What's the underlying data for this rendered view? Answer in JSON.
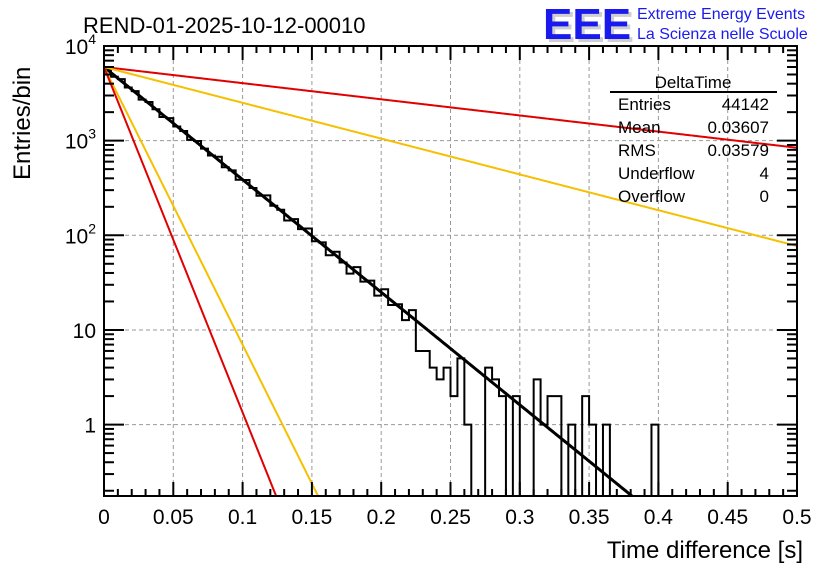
{
  "chart_data": {
    "type": "bar",
    "title": "REND-01-2025-10-12-00010",
    "xlabel": "Time difference [s]",
    "ylabel": "Entries/bin",
    "xlim": [
      0,
      0.5
    ],
    "ylim": [
      0.176,
      10000
    ],
    "yscale": "log",
    "grid": true,
    "bin_width": 0.005,
    "x_ticks": [
      "0",
      "0.05",
      "0.1",
      "0.15",
      "0.2",
      "0.25",
      "0.3",
      "0.35",
      "0.4",
      "0.45",
      "0.5"
    ],
    "y_ticks": [
      {
        "value": 1,
        "base": "1",
        "exp": ""
      },
      {
        "value": 10,
        "base": "10",
        "exp": ""
      },
      {
        "value": 100,
        "base": "10",
        "exp": "2"
      },
      {
        "value": 1000,
        "base": "10",
        "exp": "3"
      },
      {
        "value": 10000,
        "base": "10",
        "exp": "4"
      }
    ],
    "histogram": {
      "name": "DeltaTime",
      "exp_amplitude": 6000,
      "exp_tau": 0.0365,
      "tail_bins": [
        {
          "x": 0.225,
          "value": 6
        },
        {
          "x": 0.23,
          "value": 6
        },
        {
          "x": 0.235,
          "value": 4
        },
        {
          "x": 0.24,
          "value": 3
        },
        {
          "x": 0.245,
          "value": 4
        },
        {
          "x": 0.25,
          "value": 2
        },
        {
          "x": 0.255,
          "value": 5
        },
        {
          "x": 0.26,
          "value": 1
        },
        {
          "x": 0.265,
          "value": 0
        },
        {
          "x": 0.27,
          "value": 0
        },
        {
          "x": 0.275,
          "value": 4
        },
        {
          "x": 0.28,
          "value": 3
        },
        {
          "x": 0.285,
          "value": 2
        },
        {
          "x": 0.29,
          "value": 0
        },
        {
          "x": 0.295,
          "value": 2
        },
        {
          "x": 0.3,
          "value": 0
        },
        {
          "x": 0.305,
          "value": 0
        },
        {
          "x": 0.31,
          "value": 3
        },
        {
          "x": 0.315,
          "value": 1
        },
        {
          "x": 0.32,
          "value": 2
        },
        {
          "x": 0.325,
          "value": 2
        },
        {
          "x": 0.33,
          "value": 0
        },
        {
          "x": 0.335,
          "value": 1
        },
        {
          "x": 0.34,
          "value": 0
        },
        {
          "x": 0.345,
          "value": 2
        },
        {
          "x": 0.35,
          "value": 1
        },
        {
          "x": 0.355,
          "value": 0
        },
        {
          "x": 0.36,
          "value": 1
        },
        {
          "x": 0.365,
          "value": 0
        },
        {
          "x": 0.37,
          "value": 0
        },
        {
          "x": 0.375,
          "value": 0
        },
        {
          "x": 0.38,
          "value": 0
        },
        {
          "x": 0.385,
          "value": 0
        },
        {
          "x": 0.39,
          "value": 0
        },
        {
          "x": 0.395,
          "value": 1
        }
      ],
      "fluctuations": [
        1.02,
        0.97,
        1.05,
        0.98,
        1.03,
        0.96,
        1.04,
        1.0,
        0.95,
        1.06,
        0.99,
        1.02,
        0.94,
        1.05,
        1.0,
        0.97,
        1.08,
        0.96,
        1.02,
        0.93,
        1.06,
        1.0,
        0.95,
        1.1,
        0.98,
        1.02,
        0.9,
        1.07,
        0.96,
        1.12,
        0.94,
        1.05,
        0.88,
        1.1,
        0.97,
        0.85,
        1.14,
        0.92,
        1.08,
        0.86,
        1.15,
        0.9,
        1.05,
        0.82,
        1.2
      ]
    },
    "series": [
      {
        "name": "fit",
        "color": "#000000",
        "type": "exp",
        "amplitude": 6000,
        "tau": 0.0365
      },
      {
        "name": "upper-red",
        "color": "#e00000",
        "type": "exp",
        "amplitude": 6000,
        "tau": 0.2545
      },
      {
        "name": "upper-yellow",
        "color": "#f5c000",
        "type": "exp",
        "amplitude": 6000,
        "tau": 0.1148
      },
      {
        "name": "steep-yellow",
        "color": "#f5c000",
        "type": "exp",
        "amplitude": 6000,
        "tau": 0.0148
      },
      {
        "name": "steep-red",
        "color": "#e00000",
        "type": "exp",
        "amplitude": 6000,
        "tau": 0.0119
      }
    ]
  },
  "stats_box": {
    "title": "DeltaTime",
    "rows": [
      {
        "label": "Entries",
        "value": "44142"
      },
      {
        "label": "Mean",
        "value": "0.03607"
      },
      {
        "label": "RMS",
        "value": "0.03579"
      },
      {
        "label": "Underflow",
        "value": "4"
      },
      {
        "label": "Overflow",
        "value": "0"
      }
    ]
  },
  "logo": {
    "letters": "EEE",
    "line1": "Extreme Energy Events",
    "line2": "La Scienza nelle Scuole"
  }
}
